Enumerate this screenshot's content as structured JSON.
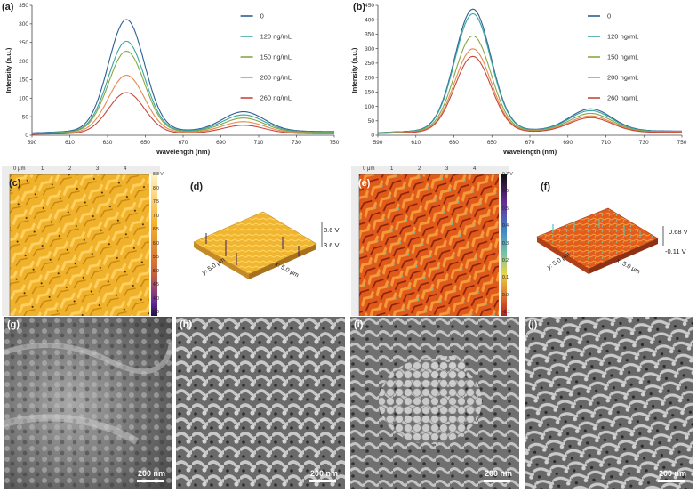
{
  "chart_data": [
    {
      "type": "line",
      "label": "(a)",
      "xlabel": "Wavelength (nm)",
      "ylabel": "Intensity (a.u.)",
      "xlim": [
        590,
        750
      ],
      "ylim": [
        0,
        350
      ],
      "xticks": [
        590,
        610,
        630,
        650,
        670,
        690,
        710,
        730,
        750
      ],
      "yticks": [
        0,
        50,
        100,
        150,
        200,
        250,
        300,
        350
      ],
      "legend_position": "right",
      "series": [
        {
          "name": "0",
          "color": "#2e5f93",
          "peak": 300,
          "shoulder": 52
        },
        {
          "name": "120 ng/mL",
          "color": "#3aa6a0",
          "peak": 243,
          "shoulder": 45
        },
        {
          "name": "150 ng/mL",
          "color": "#86a845",
          "peak": 218,
          "shoulder": 38
        },
        {
          "name": "200 ng/mL",
          "color": "#e58a52",
          "peak": 155,
          "shoulder": 30
        },
        {
          "name": "260 ng/mL",
          "color": "#c8473d",
          "peak": 110,
          "shoulder": 22
        }
      ]
    },
    {
      "type": "line",
      "label": "(b)",
      "xlabel": "Wavelength (nm)",
      "ylabel": "Intensity (a.u.)",
      "xlim": [
        590,
        750
      ],
      "ylim": [
        0,
        450
      ],
      "xticks": [
        590,
        610,
        630,
        650,
        670,
        690,
        710,
        730,
        750
      ],
      "yticks": [
        0,
        50,
        100,
        150,
        200,
        250,
        300,
        350,
        400,
        450
      ],
      "legend_position": "right",
      "series": [
        {
          "name": "0",
          "color": "#2e5f93",
          "peak": 420,
          "shoulder": 75
        },
        {
          "name": "120 ng/mL",
          "color": "#3aa6a0",
          "peak": 405,
          "shoulder": 70
        },
        {
          "name": "150 ng/mL",
          "color": "#86a845",
          "peak": 330,
          "shoulder": 62
        },
        {
          "name": "200 ng/mL",
          "color": "#e58a52",
          "peak": 287,
          "shoulder": 55
        },
        {
          "name": "260 ng/mL",
          "color": "#c8473d",
          "peak": 262,
          "shoulder": 50
        }
      ]
    }
  ],
  "panels": {
    "c": {
      "label": "(c)",
      "ruler": [
        "0 μm",
        "1",
        "2",
        "3",
        "4"
      ],
      "colorbar": [
        "8.8 V",
        "8.0",
        "7.5",
        "7.0",
        "6.5",
        "6.0",
        "5.5",
        "5.0",
        "4.5",
        "4.0",
        "3.6"
      ]
    },
    "d": {
      "label": "(d)",
      "top": "8.6 V",
      "bottom": "3.6 V",
      "xaxis": "x: 5.0 μm",
      "yaxis": "y: 5.0 μm"
    },
    "e": {
      "label": "(e)",
      "ruler": [
        "0 μm",
        "1",
        "2",
        "3",
        "4"
      ],
      "colorbar": [
        "0.7 V",
        "0.6",
        "0.5",
        "0.4",
        "0.3",
        "0.2",
        "0.1",
        "0.0",
        "-0.1"
      ]
    },
    "f": {
      "label": "(f)",
      "top": "0.68 V",
      "bottom": "-0.11 V",
      "xaxis": "x: 5.0 μm",
      "yaxis": "y: 5.0 μm"
    },
    "g": {
      "label": "(g)",
      "scale": "200 nm"
    },
    "h": {
      "label": "(h)",
      "scale": "200 nm"
    },
    "i": {
      "label": "(i)",
      "scale": "200 nm"
    },
    "j": {
      "label": "(j)",
      "scale": "200 nm"
    }
  }
}
